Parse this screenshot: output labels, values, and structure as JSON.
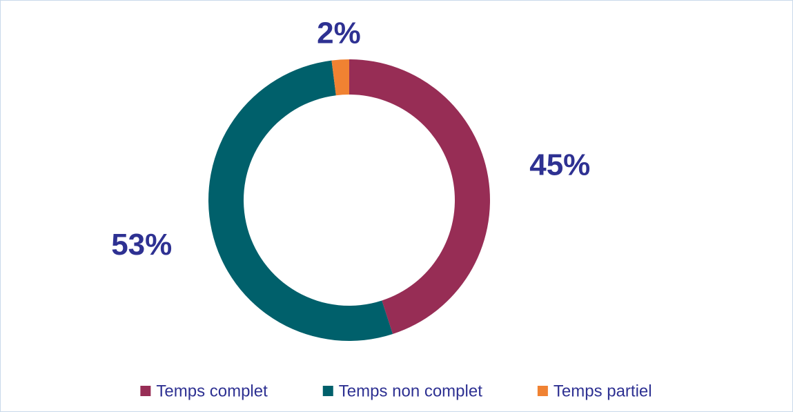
{
  "chart_data": {
    "type": "donut",
    "categories": [
      "Temps complet",
      "Temps non complet",
      "Temps partiel"
    ],
    "values": [
      45,
      53,
      2
    ],
    "value_labels": [
      "45%",
      "53%",
      "2%"
    ],
    "colors": [
      "#972d55",
      "#00606b",
      "#f08232"
    ],
    "legend": "bottom"
  }
}
